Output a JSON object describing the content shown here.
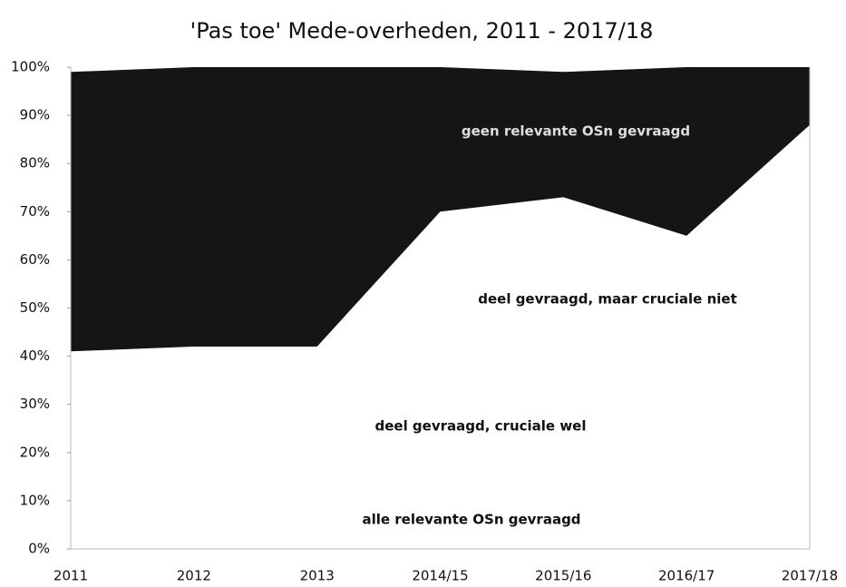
{
  "chart_data": {
    "type": "stacked_area",
    "title": "'Pas toe' Mede-overheden, 2011 - 2017/18",
    "categories": [
      "2011",
      "2012",
      "2013",
      "2014/15",
      "2015/16",
      "2016/17",
      "2017/18"
    ],
    "series": [
      {
        "color": "#ffffff",
        "values": [
          41,
          42,
          42,
          70,
          73,
          65,
          88
        ]
      },
      {
        "color": "#151515",
        "values": [
          58,
          58,
          58,
          30,
          26,
          35,
          12
        ]
      }
    ],
    "annotations": [
      "geen relevante OSn gevraagd",
      "deel gevraagd, maar cruciale niet",
      "deel gevraagd, cruciale wel",
      "alle relevante OSn gevraagd"
    ],
    "ylim": [
      0,
      100
    ],
    "yticks": [
      {
        "value": 0,
        "label": "0%"
      },
      {
        "value": 10,
        "label": "10%"
      },
      {
        "value": 20,
        "label": "20%"
      },
      {
        "value": 30,
        "label": "30%"
      },
      {
        "value": 40,
        "label": "40%"
      },
      {
        "value": 50,
        "label": "50%"
      },
      {
        "value": 60,
        "label": "60%"
      },
      {
        "value": 70,
        "label": "70%"
      },
      {
        "value": 80,
        "label": "80%"
      },
      {
        "value": 90,
        "label": "90%"
      },
      {
        "value": 100,
        "label": "100%"
      }
    ]
  }
}
